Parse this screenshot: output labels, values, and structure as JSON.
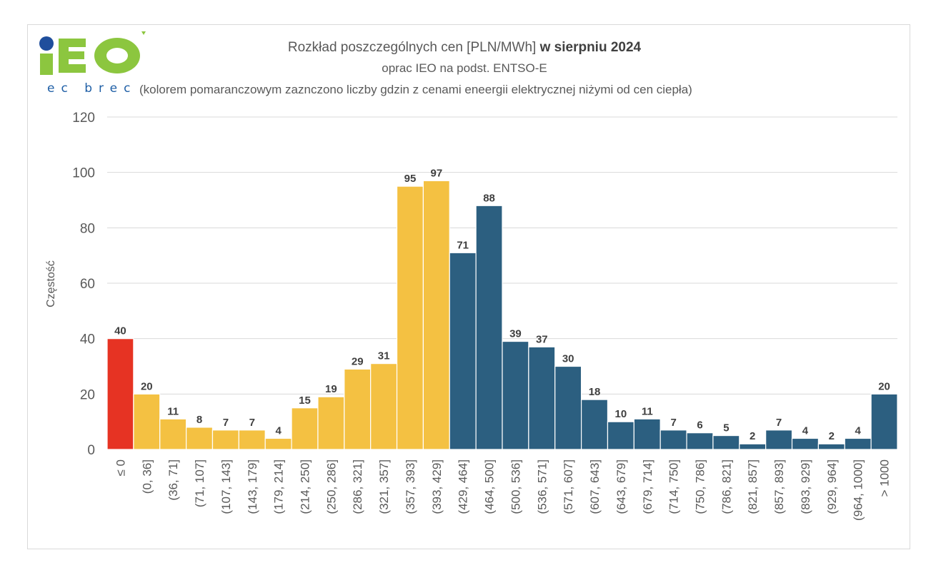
{
  "logo": {
    "letters": "IEO",
    "subtitle": "ec brec"
  },
  "header": {
    "title_plain": "Rozkład poszczególnych cen [PLN/MWh] ",
    "title_bold": "w sierpniu 2024",
    "subtitle": "oprac IEO na podst. ENTSO-E",
    "note": "(kolorem pomaranczowym zaznczono liczby gdzin z cenami eneergii elektrycznej niżymi od cen ciepła)"
  },
  "colors": {
    "red": "#e63323",
    "orange": "#f4c142",
    "blue": "#2c5f80",
    "grid": "#d9d9d9",
    "text": "#595959"
  },
  "chart_data": {
    "type": "bar",
    "ylabel": "Częstość",
    "ylim": [
      0,
      120
    ],
    "yticks": [
      0,
      20,
      40,
      60,
      80,
      100,
      120
    ],
    "grid": true,
    "categories": [
      "≤ 0",
      "(0, 36]",
      "(36, 71]",
      "(71, 107]",
      "(107, 143]",
      "(143, 179]",
      "(179, 214]",
      "(214, 250]",
      "(250, 286]",
      "(286, 321]",
      "(321, 357]",
      "(357, 393]",
      "(393, 429]",
      "(429, 464]",
      "(464, 500]",
      "(500, 536]",
      "(536, 571]",
      "(571, 607]",
      "(607, 643]",
      "(643, 679]",
      "(679, 714]",
      "(714, 750]",
      "(750, 786]",
      "(786, 821]",
      "(821, 857]",
      "(857, 893]",
      "(893, 929]",
      "(929, 964]",
      "(964, 1000]",
      "> 1000"
    ],
    "values": [
      40,
      20,
      11,
      8,
      7,
      7,
      4,
      15,
      19,
      29,
      31,
      95,
      97,
      71,
      88,
      39,
      37,
      30,
      18,
      10,
      11,
      7,
      6,
      5,
      2,
      7,
      4,
      2,
      4,
      20
    ],
    "bar_colors": [
      "red",
      "orange",
      "orange",
      "orange",
      "orange",
      "orange",
      "orange",
      "orange",
      "orange",
      "orange",
      "orange",
      "orange",
      "orange",
      "blue",
      "blue",
      "blue",
      "blue",
      "blue",
      "blue",
      "blue",
      "blue",
      "blue",
      "blue",
      "blue",
      "blue",
      "blue",
      "blue",
      "blue",
      "blue",
      "blue"
    ]
  }
}
